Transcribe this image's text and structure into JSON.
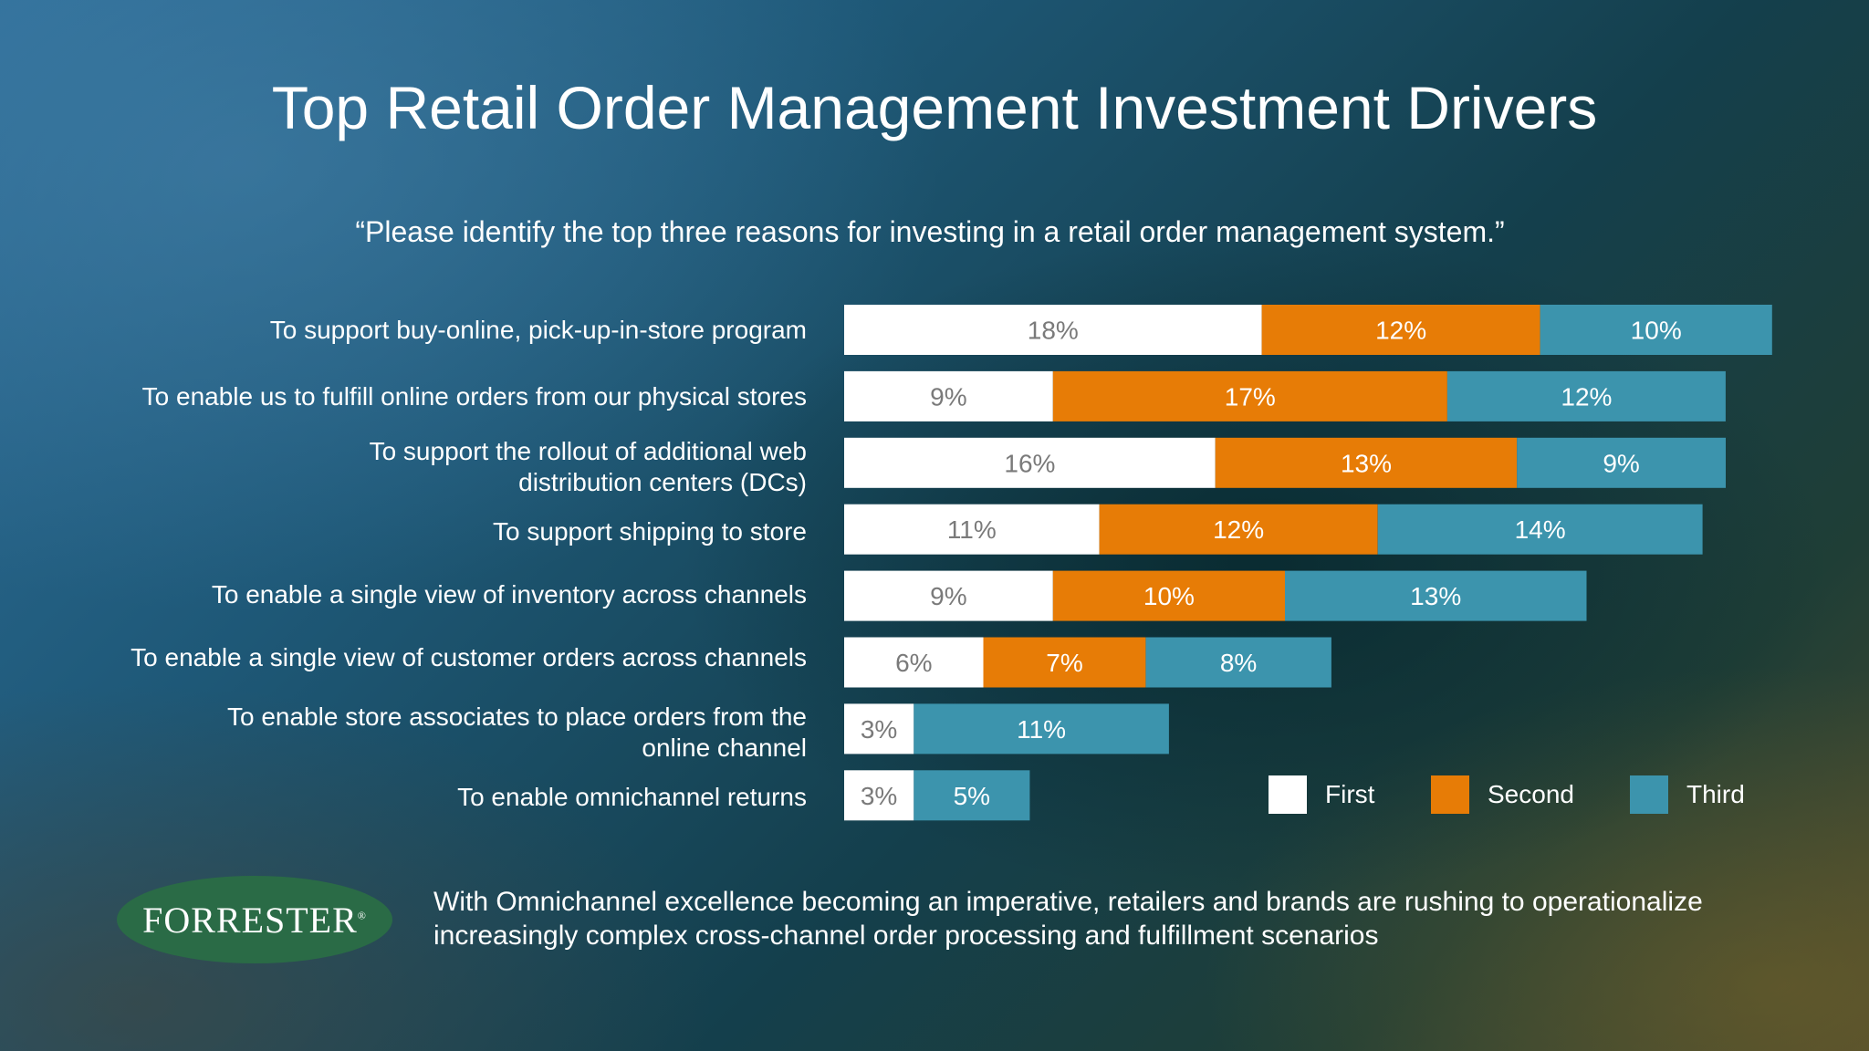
{
  "slide": {
    "title": "Top Retail Order Management Investment Drivers",
    "subtitle": "“Please identify the top three reasons for investing in a retail order management system.”",
    "footnote": "With Omnichannel excellence becoming an imperative, retailers and brands are rushing to operationalize increasingly complex cross-channel order processing and fulfillment scenarios",
    "logo_text": "FORRESTER",
    "logo_mark": "®"
  },
  "chart_data": {
    "type": "bar",
    "orientation": "horizontal",
    "stacked": true,
    "categories": [
      "To support buy-online, pick-up-in-store program",
      "To enable us to fulfill online orders from our physical stores",
      "To support the rollout of additional web distribution centers (DCs)",
      "To support shipping to store",
      "To enable a single view of inventory across channels",
      "To enable a single view of customer orders across channels",
      "To enable store associates to place orders from the online channel",
      "To enable omnichannel returns"
    ],
    "series": [
      {
        "name": "First",
        "color": "#ffffff",
        "label_color": "#7a7a7a",
        "values": [
          18,
          9,
          16,
          11,
          9,
          6,
          3,
          3
        ]
      },
      {
        "name": "Second",
        "color": "#e77c06",
        "label_color": "#ffffff",
        "values": [
          12,
          17,
          13,
          12,
          10,
          7,
          0,
          0
        ]
      },
      {
        "name": "Third",
        "color": "#3c94ad",
        "label_color": "#ffffff",
        "values": [
          10,
          12,
          9,
          14,
          13,
          8,
          11,
          5
        ]
      }
    ],
    "unit": "%",
    "legend_position": "bottom-right",
    "grid": false
  }
}
